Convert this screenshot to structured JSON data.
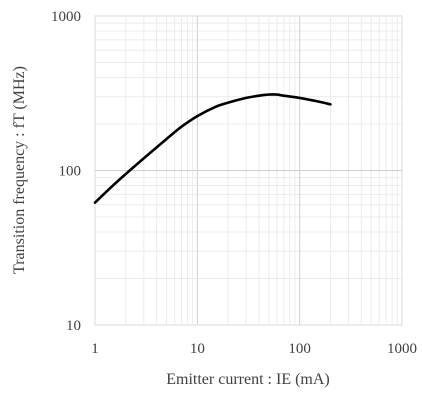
{
  "chart_data": {
    "type": "line",
    "title": "",
    "xlabel": "Emitter current : IE (mA)",
    "ylabel": "Transition frequency : fT (MHz)",
    "x_scale": "log",
    "y_scale": "log",
    "xlim": [
      1,
      1000
    ],
    "ylim": [
      10,
      1000
    ],
    "grid": true,
    "legend": "none",
    "x_ticks": [
      "1",
      "10",
      "100",
      "1000"
    ],
    "y_ticks": [
      "10",
      "100",
      "1000"
    ],
    "series": [
      {
        "color": "#000000",
        "x": [
          1,
          1.5,
          2,
          3,
          5,
          7,
          10,
          15,
          20,
          30,
          40,
          50,
          60,
          70,
          100,
          150,
          200
        ],
        "y": [
          62,
          80,
          95,
          120,
          160,
          192,
          225,
          258,
          275,
          295,
          305,
          310,
          310,
          305,
          295,
          280,
          268
        ]
      }
    ]
  }
}
